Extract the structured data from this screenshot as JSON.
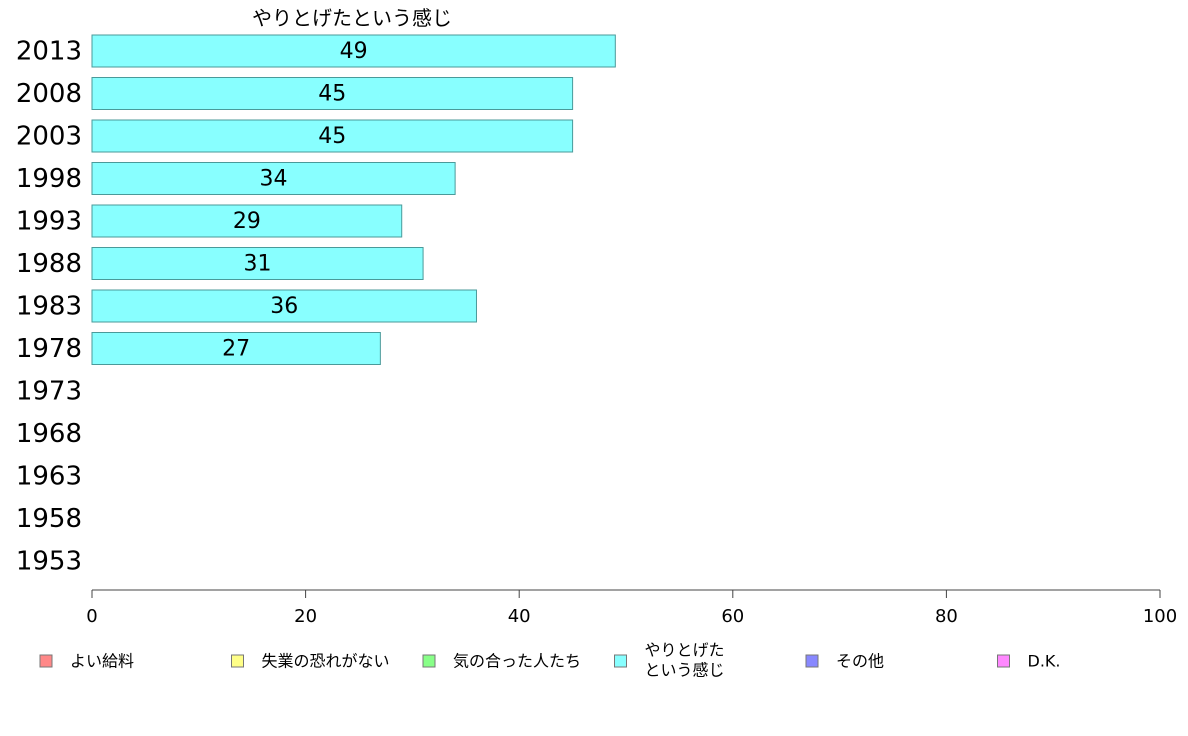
{
  "chart_data": {
    "type": "bar",
    "orientation": "horizontal",
    "title": "やりとげたという感じ",
    "categories": [
      "2013",
      "2008",
      "2003",
      "1998",
      "1993",
      "1988",
      "1983",
      "1978",
      "1973",
      "1968",
      "1963",
      "1958",
      "1953"
    ],
    "series": [
      {
        "name": "やりとげたという感じ",
        "color": "#88ffff",
        "values": [
          49,
          45,
          45,
          34,
          29,
          31,
          36,
          27,
          null,
          null,
          null,
          null,
          null
        ],
        "labels": [
          "49",
          "45",
          "45",
          "34",
          "29",
          "31",
          "36",
          "27",
          "",
          "",
          "",
          "",
          ""
        ]
      }
    ],
    "xlim": [
      0,
      100
    ],
    "xticks": [
      "0",
      "20",
      "40",
      "60",
      "80",
      "100"
    ],
    "legend_placement": "bottom",
    "legend": [
      {
        "label": "よい給料",
        "color": "#ff8888"
      },
      {
        "label": "失業の恐れがない",
        "color": "#ffff88"
      },
      {
        "label": "気の合った人たち",
        "color": "#88ff88"
      },
      {
        "label_lines": [
          "やりとげた",
          "という感じ"
        ],
        "color": "#88ffff"
      },
      {
        "label": "その他",
        "color": "#8888ff"
      },
      {
        "label": "D.K.",
        "color": "#ff88ff"
      }
    ]
  }
}
